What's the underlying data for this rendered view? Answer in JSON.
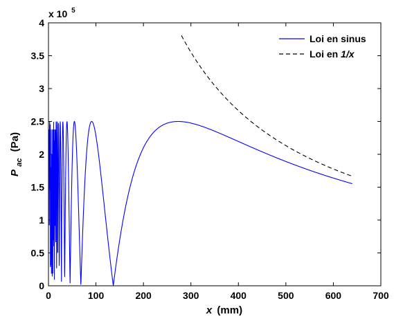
{
  "chart_data": {
    "type": "line",
    "xlabel": {
      "var": "x",
      "unit": "(mm)"
    },
    "ylabel": {
      "var": "P",
      "sub": "ac",
      "unit": "(Pa)"
    },
    "xlim": [
      0,
      700
    ],
    "ylim": [
      0,
      400000
    ],
    "xticks": [
      "0",
      "100",
      "200",
      "300",
      "400",
      "500",
      "600",
      "700"
    ],
    "yticks": [
      "0",
      "0.5",
      "1",
      "1.5",
      "2",
      "2.5",
      "3",
      "3.5",
      "4"
    ],
    "y_exponent": {
      "base": "x 10",
      "power": "5"
    },
    "grid": false,
    "legend_position": "top-right",
    "series": [
      {
        "name": "Loi en sinus",
        "color": "#0000ff",
        "style": "solid",
        "amplitude": 250000,
        "x_range": [
          1,
          640
        ],
        "x": [
          1,
          2,
          4,
          8,
          9.5,
          13.5,
          19.5,
          27.5,
          39,
          45.5,
          55,
          68,
          91,
          110,
          125,
          136.5,
          150,
          175,
          200,
          225,
          250,
          273,
          300,
          350,
          400,
          450,
          500,
          550,
          600,
          640
        ],
        "y": [
          250000,
          0,
          250000,
          0,
          250000,
          0,
          250000,
          0,
          250000,
          0,
          250000,
          0,
          250000,
          139000,
          67000,
          0,
          67000,
          166000,
          218000,
          241000,
          249000,
          250000,
          247000,
          230000,
          209000,
          193000,
          177000,
          167000,
          161000,
          156000
        ]
      },
      {
        "name": "Loi en 1/x",
        "name_parts": [
          "Loi en ",
          "1/x"
        ],
        "color": "#000000",
        "style": "dashed",
        "x_range": [
          280,
          640
        ],
        "x": [
          280,
          300,
          350,
          400,
          450,
          500,
          550,
          600,
          640
        ],
        "y": [
          380000,
          355000,
          304000,
          266000,
          236000,
          213000,
          193000,
          177000,
          166000
        ]
      }
    ]
  }
}
